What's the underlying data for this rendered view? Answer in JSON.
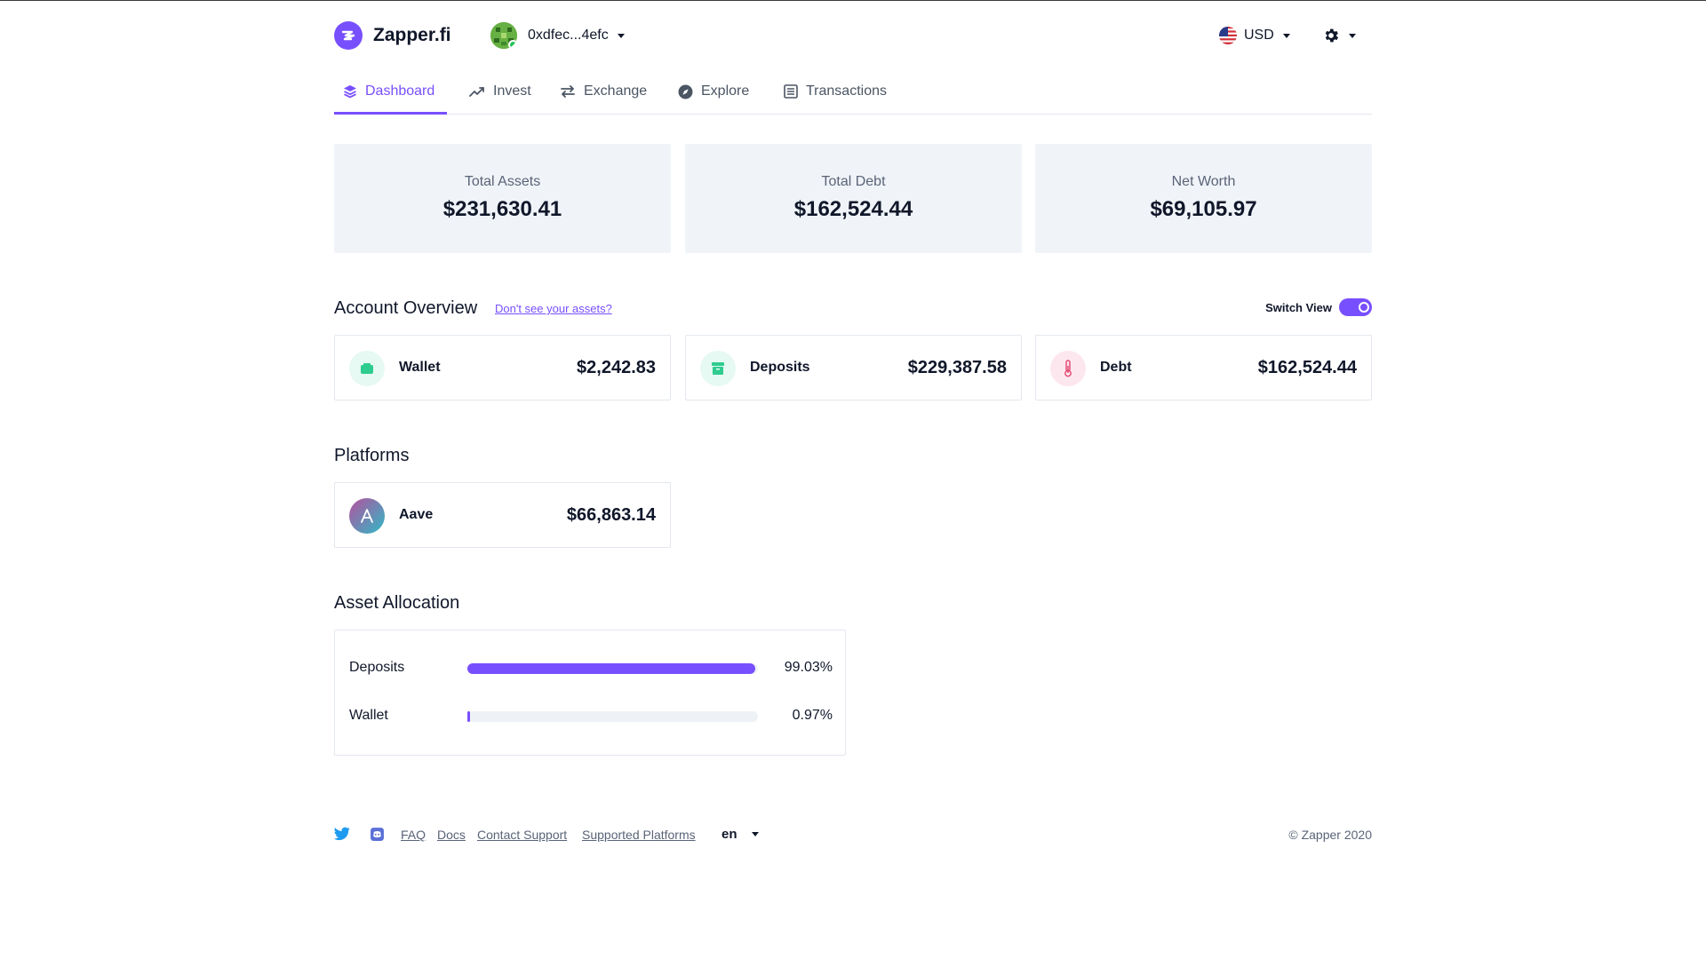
{
  "app": {
    "name": "Zapper.fi"
  },
  "header": {
    "wallet_address": "0xdfec...4efc",
    "currency": "USD",
    "icons": {
      "logo": "zapper-logo-icon",
      "avatar": "wallet-avatar-icon",
      "flag": "us-flag-icon",
      "settings": "gear-icon"
    }
  },
  "tabs": [
    {
      "label": "Dashboard",
      "icon": "layers-icon",
      "active": true
    },
    {
      "label": "Invest",
      "icon": "trending-up-icon",
      "active": false
    },
    {
      "label": "Exchange",
      "icon": "swap-arrows-icon",
      "active": false
    },
    {
      "label": "Explore",
      "icon": "compass-icon",
      "active": false
    },
    {
      "label": "Transactions",
      "icon": "list-icon",
      "active": false
    }
  ],
  "summary": {
    "total_assets": {
      "label": "Total Assets",
      "value": "$231,630.41"
    },
    "total_debt": {
      "label": "Total Debt",
      "value": "$162,524.44"
    },
    "net_worth": {
      "label": "Net Worth",
      "value": "$69,105.97"
    }
  },
  "overview": {
    "title": "Account Overview",
    "hint_link": "Don't see your assets?",
    "switch_label": "Switch View",
    "switch_on": true,
    "cards": {
      "wallet": {
        "label": "Wallet",
        "value": "$2,242.83",
        "icon": "wallet-icon"
      },
      "deposits": {
        "label": "Deposits",
        "value": "$229,387.58",
        "icon": "archive-box-icon"
      },
      "debt": {
        "label": "Debt",
        "value": "$162,524.44",
        "icon": "thermometer-icon"
      }
    },
    "colors": {
      "accent": "#784ffe",
      "wallet_icon_bg": "#e6f9f2",
      "wallet_icon": "#2ecc8e",
      "debt_icon_bg": "#fde7ee",
      "debt_icon": "#e0466f"
    }
  },
  "platforms": {
    "title": "Platforms",
    "items": [
      {
        "label": "Aave",
        "value": "$66,863.14",
        "icon": "aave-logo-icon"
      }
    ]
  },
  "allocation": {
    "title": "Asset Allocation",
    "rows": [
      {
        "label": "Deposits",
        "percent_text": "99.03%",
        "fraction": 0.9903
      },
      {
        "label": "Wallet",
        "percent_text": "0.97%",
        "fraction": 0.0097
      }
    ]
  },
  "footer": {
    "links": {
      "faq": "FAQ",
      "docs": "Docs",
      "support": "Contact Support",
      "platforms": "Supported Platforms"
    },
    "language": "en",
    "copyright": "© Zapper 2020",
    "icons": {
      "twitter": "twitter-icon",
      "discord": "discord-icon"
    }
  }
}
